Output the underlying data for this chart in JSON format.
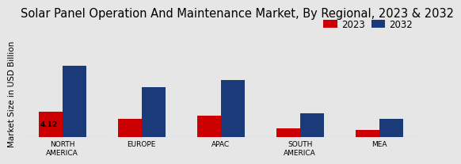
{
  "title": "Solar Panel Operation And Maintenance Market, By Regional, 2023 & 2032",
  "ylabel": "Market Size in USD Billion",
  "categories": [
    "NORTH\nAMERICA",
    "EUROPE",
    "APAC",
    "SOUTH\nAMERICA",
    "MEA"
  ],
  "values_2023": [
    4.12,
    3.0,
    3.5,
    1.5,
    1.2
  ],
  "values_2032": [
    11.5,
    8.0,
    9.2,
    3.8,
    3.0
  ],
  "color_2023": "#cc0000",
  "color_2032": "#1b3a7a",
  "bar_width": 0.3,
  "label_2023": "2023",
  "label_2032": "2032",
  "annotation_value": "4.12",
  "annotation_bar": 0,
  "background_color": "#e6e6e6",
  "title_fontsize": 10.5,
  "axis_label_fontsize": 7.5,
  "tick_fontsize": 6.5,
  "legend_fontsize": 8.5,
  "ylim_max": 14
}
